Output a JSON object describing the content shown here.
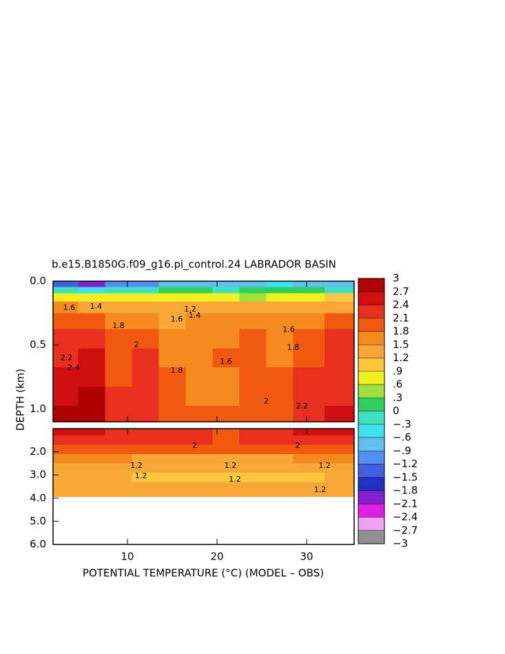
{
  "chart_data": {
    "type": "contour",
    "title": "b.e15.B1850G.f09_g16.pi_control.24 LABRADOR BASIN",
    "xlabel": "POTENTIAL TEMPERATURE (°C) (MODEL – OBS)",
    "ylabel": "DEPTH (km)",
    "xlim": [
      1.7,
      35.3
    ],
    "xticks": [
      10,
      20,
      30
    ],
    "x": [
      3,
      6,
      9,
      12,
      15,
      18,
      21,
      24,
      27,
      30,
      34
    ],
    "panels": [
      {
        "ylim": [
          0,
          1.1
        ],
        "yticks": [
          {
            "value": 0,
            "label": "0.0"
          },
          0.5,
          {
            "value": 1,
            "label": "1.0"
          }
        ],
        "depth": [
          0.02,
          0.07,
          0.12,
          0.2,
          0.3,
          0.45,
          0.6,
          0.75,
          0.9,
          1.05
        ],
        "z": [
          [
            -1.5,
            -2,
            -1.2,
            -1,
            -0.8,
            -0.8,
            -0.9,
            -0.7,
            -0.6,
            -0.8,
            -0.9
          ],
          [
            -0.2,
            -0.5,
            -0.3,
            -0.2,
            0,
            0,
            -0.2,
            0,
            0.2,
            0,
            -0.1
          ],
          [
            0.8,
            0.6,
            0.7,
            0.8,
            0.6,
            0.8,
            0.7,
            0.5,
            0.6,
            0.8,
            0.9
          ],
          [
            1.5,
            1.4,
            1.3,
            1.3,
            1.2,
            1.3,
            1.3,
            1.3,
            1.3,
            1.3,
            1.4
          ],
          [
            1.8,
            1.9,
            1.6,
            1.7,
            1.4,
            1.6,
            1.6,
            1.5,
            1.5,
            1.7,
            1.9
          ],
          [
            2.1,
            2.2,
            1.9,
            2.0,
            1.6,
            1.7,
            1.7,
            1.8,
            1.7,
            1.9,
            2.1
          ],
          [
            2.3,
            2.4,
            2.0,
            2.2,
            1.7,
            1.7,
            1.8,
            1.9,
            1.7,
            2.0,
            2.2
          ],
          [
            2.5,
            2.6,
            2.0,
            2.2,
            1.8,
            1.7,
            1.7,
            2.0,
            1.8,
            2.1,
            2.3
          ],
          [
            2.6,
            2.7,
            2.1,
            2.2,
            1.9,
            1.7,
            1.7,
            2.0,
            1.9,
            2.1,
            2.3
          ],
          [
            2.7,
            2.8,
            2.2,
            2.2,
            2.0,
            1.8,
            1.8,
            2.0,
            2.0,
            2.2,
            2.4
          ]
        ],
        "contour_labels": [
          {
            "label": "1.6",
            "x": 3.5,
            "depth": 0.21
          },
          {
            "label": "1.4",
            "x": 6.5,
            "depth": 0.2
          },
          {
            "label": "1.8",
            "x": 9,
            "depth": 0.35
          },
          {
            "label": "2",
            "x": 11,
            "depth": 0.5
          },
          {
            "label": "2.2",
            "x": 3.2,
            "depth": 0.6
          },
          {
            "label": "2.4",
            "x": 4,
            "depth": 0.68
          },
          {
            "label": "1.6",
            "x": 15.5,
            "depth": 0.3
          },
          {
            "label": "1.2",
            "x": 17,
            "depth": 0.22
          },
          {
            "label": "1.4",
            "x": 17.5,
            "depth": 0.27
          },
          {
            "label": "1.8",
            "x": 15.5,
            "depth": 0.7
          },
          {
            "label": "1.6",
            "x": 21,
            "depth": 0.63
          },
          {
            "label": "2",
            "x": 25.5,
            "depth": 0.94
          },
          {
            "label": "1.6",
            "x": 28,
            "depth": 0.38
          },
          {
            "label": "1.8",
            "x": 28.5,
            "depth": 0.52
          },
          {
            "label": "2.2",
            "x": 29.5,
            "depth": 0.98
          }
        ]
      },
      {
        "ylim": [
          1,
          6
        ],
        "yticks": [
          {
            "value": 2,
            "label": "2.0"
          },
          {
            "value": 3,
            "label": "3.0"
          },
          {
            "value": 4,
            "label": "4.0"
          },
          {
            "value": 5,
            "label": "5.0"
          },
          {
            "value": 6,
            "label": "6.0"
          }
        ],
        "depth": [
          1.1,
          1.5,
          1.9,
          2.3,
          2.7,
          3.1,
          3.5,
          3.8
        ],
        "z": [
          [
            2.4,
            2.5,
            2.3,
            2.3,
            2.2,
            2.2,
            2.0,
            2.1,
            2.3,
            2.4,
            2.4
          ],
          [
            2.3,
            2.3,
            2.2,
            2.2,
            2.1,
            2.1,
            2.0,
            2.1,
            2.2,
            2.3,
            2.3
          ],
          [
            2.0,
            2.0,
            2.0,
            1.9,
            1.9,
            1.9,
            1.8,
            1.9,
            1.9,
            1.9,
            2.0
          ],
          [
            1.5,
            1.5,
            1.5,
            1.4,
            1.4,
            1.4,
            1.4,
            1.4,
            1.4,
            1.5,
            1.5
          ],
          [
            1.3,
            1.3,
            1.3,
            1.2,
            1.2,
            1.2,
            1.2,
            1.2,
            1.2,
            1.2,
            1.3
          ],
          [
            1.2,
            1.2,
            1.2,
            1.1,
            1.1,
            1.1,
            1.1,
            1.1,
            1.1,
            1.1,
            1.2
          ],
          [
            1.3,
            1.3,
            1.2,
            1.2,
            1.2,
            1.3,
            1.3,
            1.3,
            1.3,
            1.2,
            1.3
          ],
          [
            1.4,
            1.4,
            1.3,
            1.3,
            1.3,
            1.4,
            1.4,
            1.4,
            1.4,
            1.3,
            1.3
          ]
        ],
        "contour_labels": [
          {
            "label": "2",
            "x": 17.5,
            "depth": 1.75
          },
          {
            "label": "1.2",
            "x": 11,
            "depth": 2.6
          },
          {
            "label": "1.2",
            "x": 21.5,
            "depth": 2.6
          },
          {
            "label": "1.2",
            "x": 32,
            "depth": 2.6
          },
          {
            "label": "1.2",
            "x": 11.5,
            "depth": 3.05
          },
          {
            "label": "1.2",
            "x": 22,
            "depth": 3.2
          },
          {
            "label": "2",
            "x": 29,
            "depth": 1.75
          },
          {
            "label": "1.2",
            "x": 31.5,
            "depth": 3.65
          }
        ]
      }
    ],
    "colorbar": {
      "ticks": [
        3,
        2.7,
        2.4,
        2.1,
        1.8,
        1.5,
        1.2,
        {
          "value": 0.9,
          "label": ".9"
        },
        {
          "value": 0.6,
          "label": ".6"
        },
        {
          "value": 0.3,
          "label": ".3"
        },
        0,
        {
          "value": -0.3,
          "label": "−.3"
        },
        {
          "value": -0.6,
          "label": "−.6"
        },
        {
          "value": -0.9,
          "label": "−.9"
        },
        {
          "value": -1.2,
          "label": "−1.2"
        },
        {
          "value": -1.5,
          "label": "−1.5"
        },
        {
          "value": -1.8,
          "label": "−1.8"
        },
        {
          "value": -2.1,
          "label": "−2.1"
        },
        {
          "value": -2.4,
          "label": "−2.4"
        },
        {
          "value": -2.7,
          "label": "−2.7"
        },
        {
          "value": -3,
          "label": "−3"
        }
      ],
      "colors": [
        "#b00000",
        "#d01010",
        "#e83020",
        "#f05a10",
        "#f58a20",
        "#f8a838",
        "#fbc840",
        "#f0f020",
        "#a0e040",
        "#30d060",
        "#40e0c0",
        "#40e0f0",
        "#60c0f0",
        "#5090f0",
        "#4060e0",
        "#2030c0",
        "#8020d0",
        "#e020e0",
        "#f0a0f0",
        "#909090"
      ]
    }
  }
}
